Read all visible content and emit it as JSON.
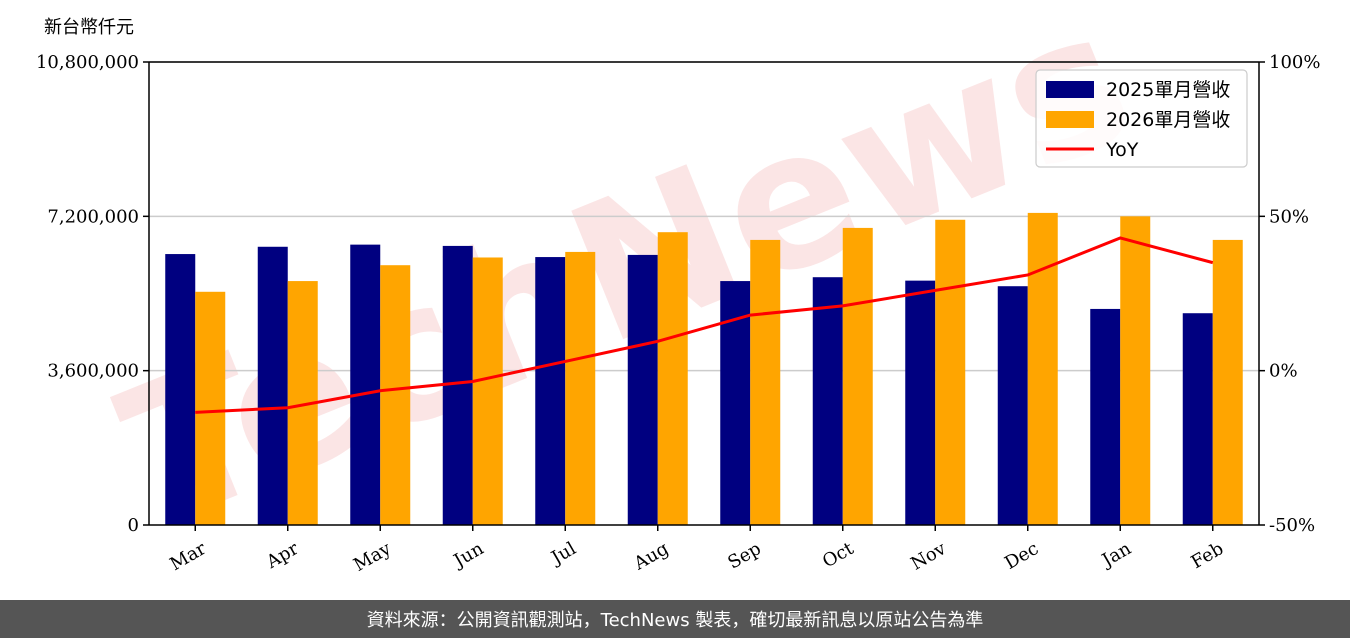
{
  "footer": {
    "source_text": "資料來源：公開資訊觀測站，TechNews 製表，確切最新訊息以原站公告為準"
  },
  "watermark": {
    "text": "TechNews"
  },
  "colors": {
    "series_2025": "#000080",
    "series_2026": "#FFA500",
    "yoy": "#FF0000",
    "grid": "#cccccc",
    "watermark": "#f6c5c5"
  },
  "chart_data": {
    "type": "bar",
    "categories": [
      "Mar",
      "Apr",
      "May",
      "Jun",
      "Jul",
      "Aug",
      "Sep",
      "Oct",
      "Nov",
      "Dec",
      "Jan",
      "Feb"
    ],
    "series": [
      {
        "name": "2025單月營收",
        "values": [
          6320000,
          6490000,
          6540000,
          6510000,
          6250000,
          6300000,
          5690000,
          5780000,
          5700000,
          5570000,
          5040000,
          4940000
        ]
      },
      {
        "name": "2026單月營收",
        "values": [
          5440000,
          5690000,
          6060000,
          6240000,
          6370000,
          6830000,
          6650000,
          6930000,
          7120000,
          7280000,
          7200000,
          6650000
        ]
      }
    ],
    "line_series": {
      "name": "YoY",
      "values": [
        -13.5,
        -12.0,
        -6.5,
        -3.5,
        3.0,
        9.5,
        18.0,
        21.0,
        26.0,
        31.0,
        43.0,
        35.0
      ]
    },
    "ylabel": "新台幣仟元",
    "ylim": [
      0,
      10800000
    ],
    "yticks": [
      "0",
      "3,600,000",
      "7,200,000",
      "10,800,000"
    ],
    "y2lim": [
      -50,
      100
    ],
    "y2ticks": [
      "-50%",
      "0%",
      "50%",
      "100%"
    ],
    "grid": true,
    "legend_position": "top-right"
  }
}
